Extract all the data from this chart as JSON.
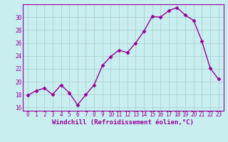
{
  "x": [
    0,
    1,
    2,
    3,
    4,
    5,
    6,
    7,
    8,
    9,
    10,
    11,
    12,
    13,
    14,
    15,
    16,
    17,
    18,
    19,
    20,
    21,
    22,
    23
  ],
  "y": [
    17.9,
    18.6,
    19.0,
    18.0,
    19.5,
    18.3,
    16.4,
    18.0,
    19.5,
    22.5,
    23.9,
    24.9,
    24.5,
    26.0,
    27.8,
    30.1,
    30.0,
    31.0,
    31.5,
    30.3,
    29.5,
    26.3,
    22.1,
    20.4
  ],
  "line_color": "#990099",
  "marker": "D",
  "marker_size": 2.5,
  "line_width": 1.0,
  "bg_color": "#c8eef0",
  "grid_color": "#aacccc",
  "xlabel": "Windchill (Refroidissement éolien,°C)",
  "ylim": [
    15.5,
    32.0
  ],
  "yticks": [
    16,
    18,
    20,
    22,
    24,
    26,
    28,
    30
  ],
  "xticks": [
    0,
    1,
    2,
    3,
    4,
    5,
    6,
    7,
    8,
    9,
    10,
    11,
    12,
    13,
    14,
    15,
    16,
    17,
    18,
    19,
    20,
    21,
    22,
    23
  ],
  "tick_fontsize": 5.5,
  "xlabel_fontsize": 6.5,
  "label_color": "#990099",
  "axis_color": "#990099"
}
